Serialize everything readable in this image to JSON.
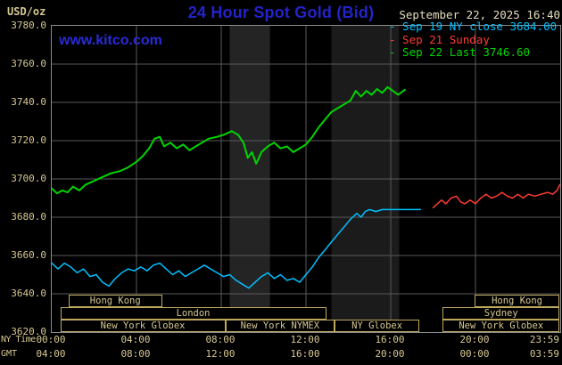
{
  "header": {
    "title": "24 Hour Spot Gold (Bid)",
    "datetime": "September 22, 2025 16:40",
    "watermark": "www.kitco.com",
    "legend": [
      {
        "marker": "-",
        "label": "Sep 19 NY close 3684.00",
        "color": "#00bfff"
      },
      {
        "marker": "-",
        "label": "Sep 21 Sunday",
        "color": "#ff3b30"
      },
      {
        "marker": "-",
        "label": "Sep 22 Last 3746.60",
        "color": "#00d500"
      }
    ]
  },
  "axis": {
    "units": "USD/oz",
    "ny_label": "NY Time",
    "gmt_label": "GMT",
    "tick_hours": [
      0,
      4,
      8,
      12,
      16,
      20,
      24
    ],
    "ny_ticks": [
      "00:00",
      "04:00",
      "08:00",
      "12:00",
      "16:00",
      "20:00",
      "23:59"
    ],
    "gmt_ticks": [
      "04:00",
      "08:00",
      "12:00",
      "16:00",
      "20:00",
      "00:00",
      "03:59"
    ],
    "y_ticks": [
      "3780.0",
      "3760.0",
      "3740.0",
      "3720.0",
      "3700.0",
      "3680.0",
      "3660.0",
      "3640.0",
      "3620.0"
    ]
  },
  "sessions": [
    {
      "row": 0,
      "start": 0.8,
      "end": 5.2,
      "label": "Hong Kong"
    },
    {
      "row": 0,
      "start": 19.95,
      "end": 23.97,
      "label": "Hong Kong"
    },
    {
      "row": 1,
      "start": 0.4,
      "end": 12.95,
      "label": "London"
    },
    {
      "row": 1,
      "start": 18.45,
      "end": 23.97,
      "label": "Sydney"
    },
    {
      "row": 2,
      "start": 0.4,
      "end": 8.2,
      "label": "New York Globex"
    },
    {
      "row": 2,
      "start": 8.2,
      "end": 13.35,
      "label": "New York NYMEX"
    },
    {
      "row": 2,
      "start": 13.35,
      "end": 17.35,
      "label": "NY Globex"
    },
    {
      "row": 2,
      "start": 18.45,
      "end": 23.97,
      "label": "New York Globex"
    }
  ],
  "colors": {
    "background": "#000000",
    "title_blue": "#2323cc",
    "watermark_blue": "#2a2ad8",
    "grid": "#5a5a5a",
    "plot_border": "#8c8c8c",
    "axis_text": "#d6c791",
    "date_text": "#e6debf",
    "session_border": "#bfa95c",
    "series_green": "#00d500",
    "series_cyan": "#00bfff",
    "series_red": "#ff3b30"
  },
  "chart_data": {
    "type": "line",
    "title": "24 Hour Spot Gold (Bid)",
    "xlabel": "NY Time (hours)",
    "ylabel": "USD/oz",
    "xlim": [
      0,
      24
    ],
    "ylim": [
      3620,
      3780
    ],
    "y_step": 20,
    "grid": true,
    "legend_position": "top-right",
    "bands": [
      {
        "start": 8.4,
        "end": 10.3,
        "color": "#242424"
      },
      {
        "start": 13.2,
        "end": 16.4,
        "color": "#1b1b1b"
      }
    ],
    "series": [
      {
        "id": "sep19",
        "name": "Sep 19 NY close 3684.00",
        "color": "#00bfff",
        "width": 1.5,
        "points": [
          [
            0,
            3656
          ],
          [
            0.3,
            3653
          ],
          [
            0.6,
            3656
          ],
          [
            0.9,
            3654
          ],
          [
            1.2,
            3651
          ],
          [
            1.5,
            3653
          ],
          [
            1.8,
            3649
          ],
          [
            2.1,
            3650
          ],
          [
            2.4,
            3646
          ],
          [
            2.7,
            3644
          ],
          [
            3,
            3648
          ],
          [
            3.3,
            3651
          ],
          [
            3.6,
            3653
          ],
          [
            3.9,
            3652
          ],
          [
            4.2,
            3654
          ],
          [
            4.5,
            3652
          ],
          [
            4.8,
            3655
          ],
          [
            5.1,
            3656
          ],
          [
            5.4,
            3653
          ],
          [
            5.7,
            3650
          ],
          [
            6,
            3652
          ],
          [
            6.3,
            3649
          ],
          [
            6.6,
            3651
          ],
          [
            6.9,
            3653
          ],
          [
            7.2,
            3655
          ],
          [
            7.5,
            3653
          ],
          [
            7.8,
            3651
          ],
          [
            8.1,
            3649
          ],
          [
            8.4,
            3650
          ],
          [
            8.7,
            3647
          ],
          [
            9,
            3645
          ],
          [
            9.3,
            3643
          ],
          [
            9.6,
            3646
          ],
          [
            9.9,
            3649
          ],
          [
            10.2,
            3651
          ],
          [
            10.5,
            3648
          ],
          [
            10.8,
            3650
          ],
          [
            11.1,
            3647
          ],
          [
            11.4,
            3648
          ],
          [
            11.7,
            3646
          ],
          [
            12,
            3650
          ],
          [
            12.3,
            3654
          ],
          [
            12.6,
            3659
          ],
          [
            12.9,
            3663
          ],
          [
            13.2,
            3667
          ],
          [
            13.5,
            3671
          ],
          [
            13.8,
            3675
          ],
          [
            14.1,
            3679
          ],
          [
            14.4,
            3682
          ],
          [
            14.6,
            3680
          ],
          [
            14.8,
            3683
          ],
          [
            15,
            3684
          ],
          [
            15.3,
            3683
          ],
          [
            15.6,
            3684
          ],
          [
            16,
            3684
          ],
          [
            16.5,
            3684
          ],
          [
            17,
            3684
          ],
          [
            17.4,
            3684
          ]
        ]
      },
      {
        "id": "sep21",
        "name": "Sep 21 Sunday",
        "color": "#ff3b30",
        "width": 1.5,
        "points": [
          [
            18,
            3685
          ],
          [
            18.2,
            3687
          ],
          [
            18.4,
            3689
          ],
          [
            18.6,
            3687
          ],
          [
            18.85,
            3690
          ],
          [
            19.1,
            3691
          ],
          [
            19.3,
            3688
          ],
          [
            19.5,
            3687
          ],
          [
            19.75,
            3689
          ],
          [
            20,
            3687
          ],
          [
            20.25,
            3690
          ],
          [
            20.5,
            3692
          ],
          [
            20.75,
            3690
          ],
          [
            21,
            3691
          ],
          [
            21.25,
            3693
          ],
          [
            21.5,
            3691
          ],
          [
            21.75,
            3690
          ],
          [
            22,
            3692
          ],
          [
            22.25,
            3690
          ],
          [
            22.5,
            3692
          ],
          [
            22.8,
            3691
          ],
          [
            23.1,
            3692
          ],
          [
            23.4,
            3693
          ],
          [
            23.65,
            3692
          ],
          [
            23.85,
            3694
          ],
          [
            23.98,
            3697
          ]
        ]
      },
      {
        "id": "sep22",
        "name": "Sep 22 Last 3746.60",
        "color": "#00d500",
        "width": 2,
        "points": [
          [
            0,
            3695
          ],
          [
            0.25,
            3692.5
          ],
          [
            0.5,
            3694
          ],
          [
            0.75,
            3693
          ],
          [
            1,
            3696
          ],
          [
            1.3,
            3694
          ],
          [
            1.6,
            3697
          ],
          [
            2,
            3699
          ],
          [
            2.4,
            3701
          ],
          [
            2.8,
            3703
          ],
          [
            3.2,
            3704
          ],
          [
            3.6,
            3706
          ],
          [
            4,
            3709
          ],
          [
            4.3,
            3712
          ],
          [
            4.6,
            3716
          ],
          [
            4.85,
            3721
          ],
          [
            5.1,
            3722
          ],
          [
            5.3,
            3717
          ],
          [
            5.6,
            3719
          ],
          [
            5.9,
            3716
          ],
          [
            6.2,
            3718
          ],
          [
            6.5,
            3715
          ],
          [
            6.8,
            3717
          ],
          [
            7.1,
            3719
          ],
          [
            7.4,
            3721
          ],
          [
            7.8,
            3722
          ],
          [
            8.1,
            3723
          ],
          [
            8.5,
            3725
          ],
          [
            8.8,
            3723
          ],
          [
            9.05,
            3719
          ],
          [
            9.25,
            3711
          ],
          [
            9.45,
            3714
          ],
          [
            9.65,
            3708
          ],
          [
            9.9,
            3714
          ],
          [
            10.2,
            3717
          ],
          [
            10.5,
            3719
          ],
          [
            10.8,
            3716
          ],
          [
            11.1,
            3717
          ],
          [
            11.4,
            3714
          ],
          [
            11.7,
            3716
          ],
          [
            12,
            3718
          ],
          [
            12.3,
            3722
          ],
          [
            12.6,
            3727
          ],
          [
            12.9,
            3731
          ],
          [
            13.2,
            3735
          ],
          [
            13.5,
            3737
          ],
          [
            13.8,
            3739
          ],
          [
            14.1,
            3741
          ],
          [
            14.35,
            3746
          ],
          [
            14.6,
            3743
          ],
          [
            14.85,
            3746
          ],
          [
            15.1,
            3744
          ],
          [
            15.35,
            3747
          ],
          [
            15.6,
            3745
          ],
          [
            15.85,
            3748
          ],
          [
            16.1,
            3746
          ],
          [
            16.35,
            3744
          ],
          [
            16.67,
            3746.6
          ]
        ]
      }
    ]
  }
}
